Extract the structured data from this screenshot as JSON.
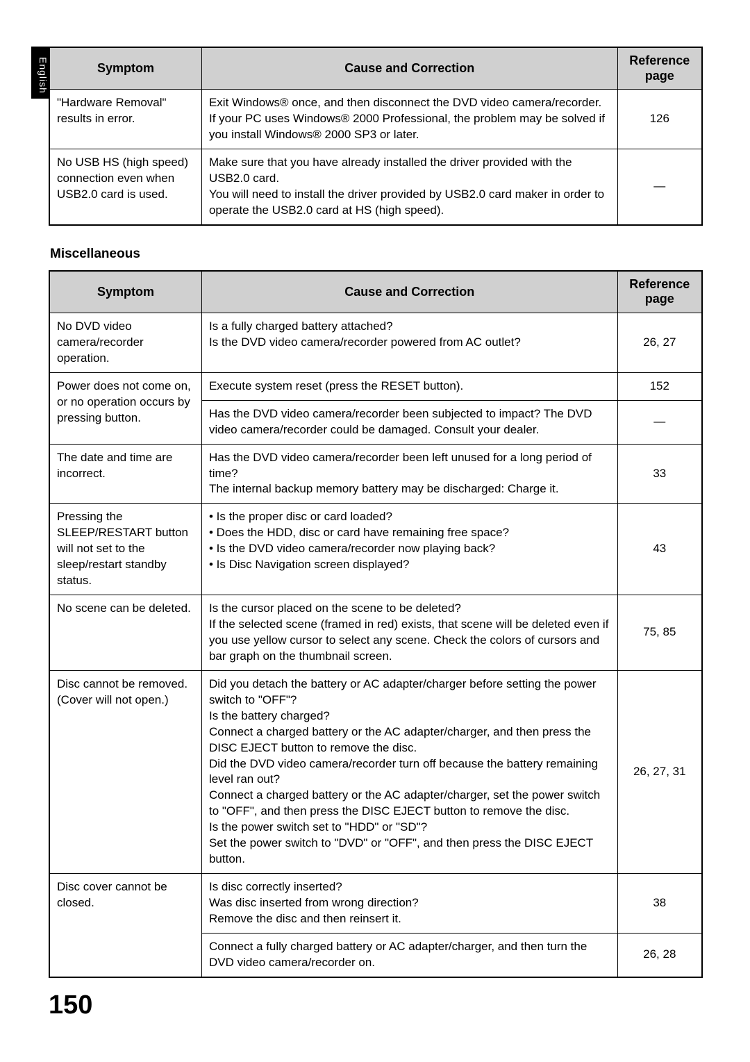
{
  "side_tab": "English",
  "page_number": "150",
  "table1": {
    "headers": {
      "symptom": "Symptom",
      "cause": "Cause and Correction",
      "ref": "Reference page"
    },
    "rows": [
      {
        "symptom": "\"Hardware Removal\" results in error.",
        "cause": "Exit Windows® once, and then disconnect the DVD video camera/recorder. If your PC uses Windows® 2000 Professional, the problem may be solved if you install Windows® 2000 SP3 or later.",
        "ref": "126"
      },
      {
        "symptom": "No USB HS (high speed) connection even when USB2.0 card is used.",
        "cause": "Make sure that you have already installed the driver provided with the USB2.0 card.\nYou will need to install the driver provided by USB2.0 card maker in order to operate the USB2.0 card at HS (high speed).",
        "ref": "—"
      }
    ]
  },
  "section_heading": "Miscellaneous",
  "table2": {
    "headers": {
      "symptom": "Symptom",
      "cause": "Cause and Correction",
      "ref": "Reference page"
    },
    "rows": [
      {
        "symptom": "No DVD video camera/recorder operation.",
        "cause": "Is a fully charged battery attached?\nIs the DVD video camera/recorder powered from AC outlet?",
        "ref": "26, 27",
        "symptom_rowspan": 1
      },
      {
        "symptom": "Power does not come on, or no operation occurs by pressing button.",
        "cause": "Execute system reset (press the RESET button).",
        "ref": "152",
        "symptom_rowspan": 2
      },
      {
        "cause": "Has the DVD video camera/recorder been subjected to impact? The DVD video camera/recorder could be damaged. Consult your dealer.",
        "ref": "—"
      },
      {
        "symptom": "The date and time are incorrect.",
        "cause": "Has the DVD video camera/recorder been left unused for a long period of time?\nThe internal backup memory battery may be discharged: Charge it.",
        "ref": "33",
        "symptom_rowspan": 1
      },
      {
        "symptom": "Pressing the SLEEP/RESTART button will not set to the sleep/restart standby status.",
        "cause_bullets": [
          "Is the proper disc or card loaded?",
          "Does the HDD, disc or card have remaining free space?",
          "Is the DVD video camera/recorder now playing back?",
          "Is Disc Navigation screen displayed?"
        ],
        "ref": "43",
        "symptom_rowspan": 1
      },
      {
        "symptom": "No scene can be deleted.",
        "cause": "Is the cursor placed on the scene to be deleted?\nIf the selected scene (framed in red) exists, that scene will be deleted even if you use yellow cursor to select any scene. Check the colors of cursors and bar graph on the thumbnail screen.",
        "ref": "75, 85",
        "symptom_rowspan": 1
      },
      {
        "symptom": "Disc cannot be removed.\n(Cover will not open.)",
        "cause": "Did you detach the battery or AC adapter/charger before setting the power switch to \"OFF\"?\nIs the battery charged?\nConnect a charged battery or the AC adapter/charger, and then press the DISC EJECT button to remove the disc.\nDid the DVD video camera/recorder turn off because the battery remaining level ran out?\nConnect a charged battery or the AC adapter/charger, set the power switch to \"OFF\", and then press the DISC EJECT button to remove the disc.\nIs the power switch set to \"HDD\" or \"SD\"?\nSet the power switch to \"DVD\" or \"OFF\", and then press the DISC EJECT button.",
        "ref": "26, 27, 31",
        "symptom_rowspan": 1
      },
      {
        "symptom": "Disc cover cannot be closed.",
        "cause": "Is disc correctly inserted?\nWas disc inserted from wrong direction?\nRemove the disc and then reinsert it.",
        "ref": "38",
        "symptom_rowspan": 2
      },
      {
        "cause": "Connect a fully charged battery or AC adapter/charger, and then turn the DVD video camera/recorder on.",
        "ref": "26, 28"
      }
    ]
  }
}
